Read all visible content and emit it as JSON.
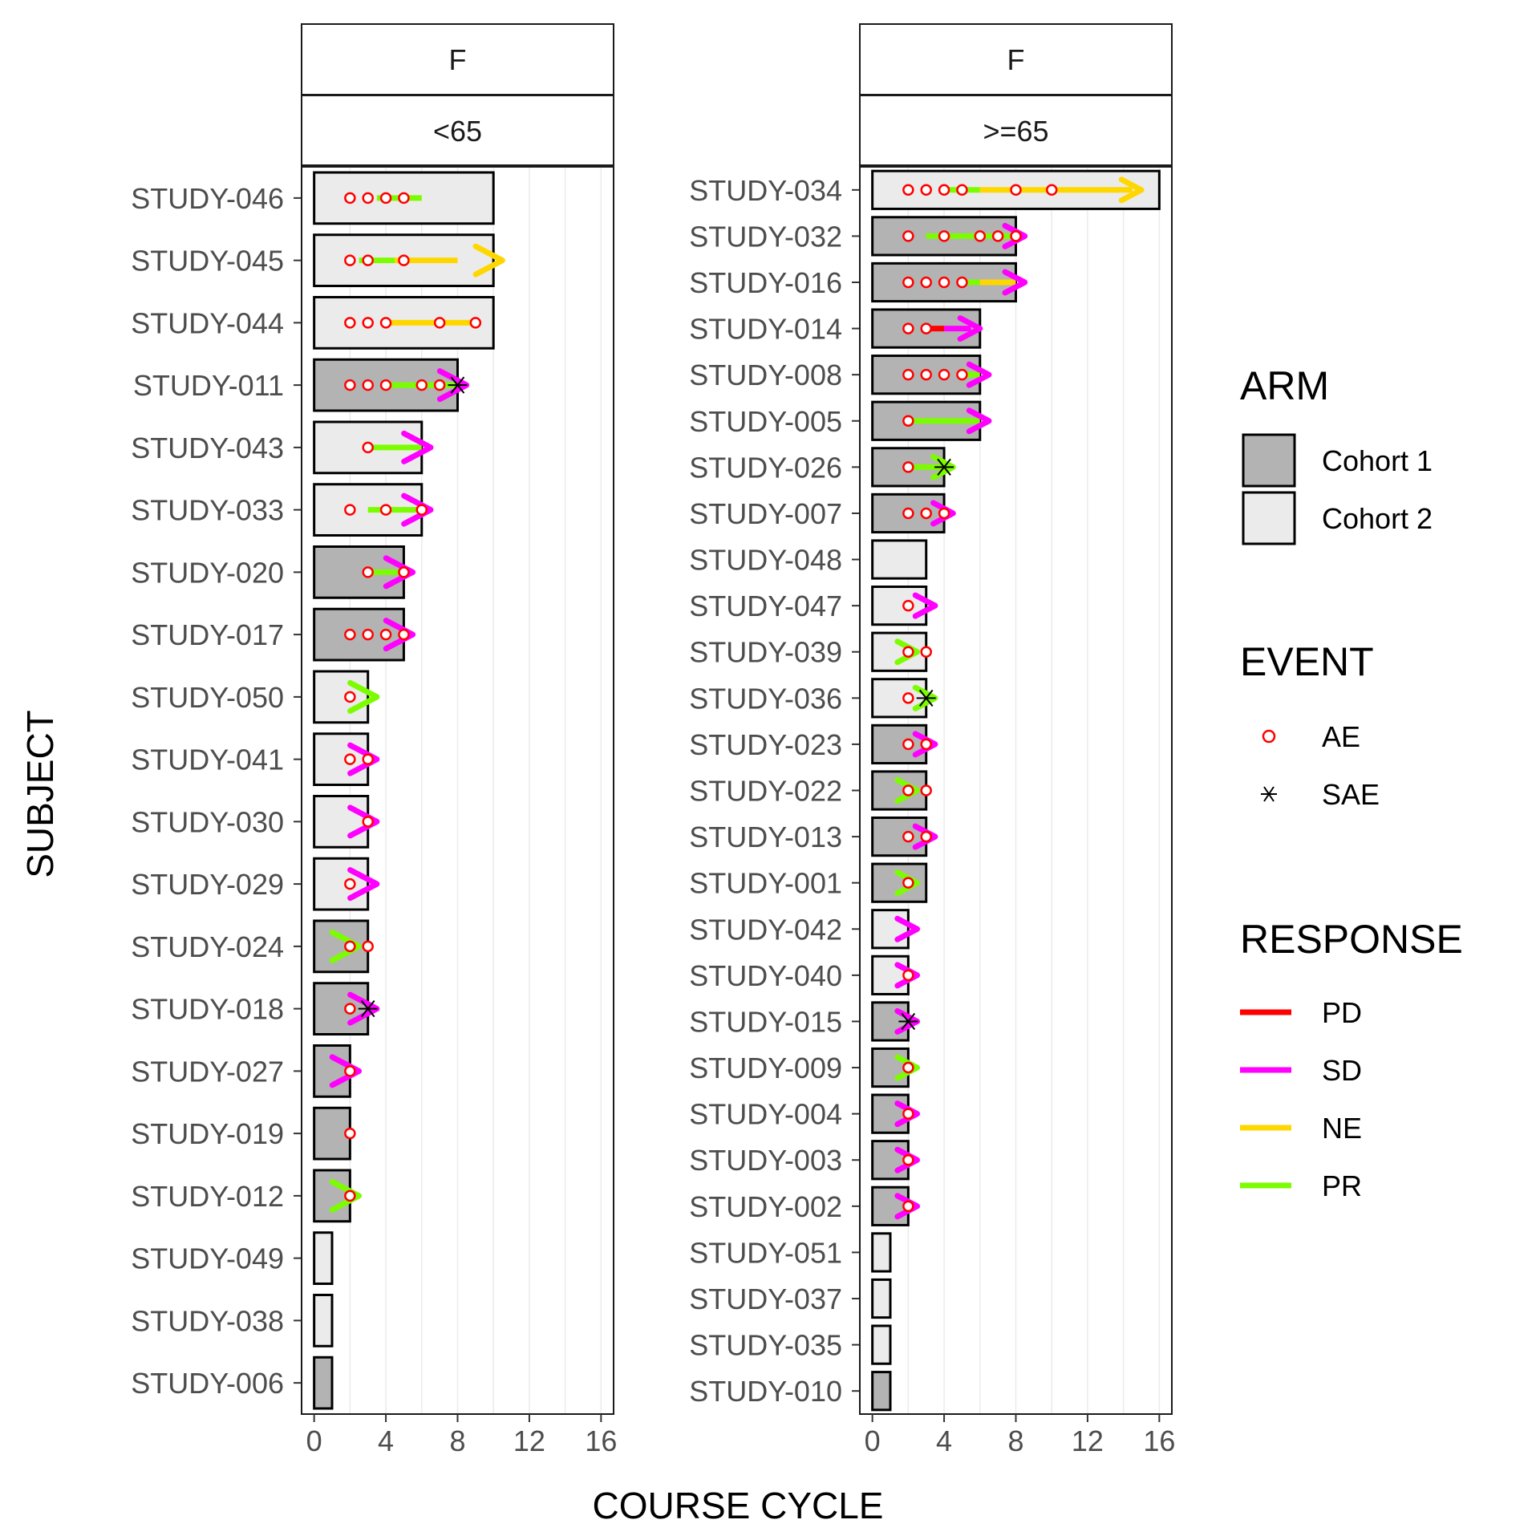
{
  "chart_data": {
    "type": "swimmer",
    "xlabel": "COURSE CYCLE",
    "ylabel": "SUBJECT",
    "x_ticks": [
      0,
      4,
      8,
      12,
      16
    ],
    "xlim": [
      -0.7,
      16.7
    ],
    "grid": true,
    "legend_position": "right",
    "colors": {
      "Cohort 1": "#b3b3b3",
      "Cohort 2": "#ebebeb",
      "PD": "#ff0000",
      "SD": "#ff00ff",
      "NE": "#ffd700",
      "PR": "#7cfc00",
      "AE": "#ff0000",
      "SAE": "#000000"
    },
    "legend": {
      "arm": {
        "title": "ARM",
        "items": [
          "Cohort 1",
          "Cohort 2"
        ]
      },
      "event": {
        "title": "EVENT",
        "items": [
          "AE",
          "SAE"
        ]
      },
      "response": {
        "title": "RESPONSE",
        "items": [
          "PD",
          "SD",
          "NE",
          "PR"
        ]
      }
    },
    "panels": [
      {
        "strip_top": "F",
        "strip_bottom": "<65",
        "subjects": [
          {
            "id": "STUDY-046",
            "arm": "Cohort 2",
            "end": 10,
            "ae": [
              2,
              3,
              4,
              5
            ],
            "sae": [],
            "response": [
              {
                "type": "PR",
                "start": 3.5,
                "end": 6
              }
            ],
            "arrow": null
          },
          {
            "id": "STUDY-045",
            "arm": "Cohort 2",
            "end": 10,
            "ae": [
              2,
              3,
              5
            ],
            "sae": [],
            "response": [
              {
                "type": "PR",
                "start": 2.5,
                "end": 4.5
              },
              {
                "type": "NE",
                "start": 4.5,
                "end": 8
              }
            ],
            "arrow": {
              "type": "NE",
              "at": 10.5
            }
          },
          {
            "id": "STUDY-044",
            "arm": "Cohort 2",
            "end": 10,
            "ae": [
              2,
              3,
              4,
              7,
              9
            ],
            "sae": [],
            "response": [
              {
                "type": "NE",
                "start": 4,
                "end": 9
              }
            ],
            "arrow": null
          },
          {
            "id": "STUDY-011",
            "arm": "Cohort 1",
            "end": 8,
            "ae": [
              2,
              3,
              4,
              6,
              7
            ],
            "sae": [
              8
            ],
            "response": [
              {
                "type": "PR",
                "start": 4,
                "end": 8
              }
            ],
            "arrow": {
              "type": "SD",
              "at": 8.5
            }
          },
          {
            "id": "STUDY-043",
            "arm": "Cohort 2",
            "end": 6,
            "ae": [
              3
            ],
            "sae": [],
            "response": [
              {
                "type": "PR",
                "start": 3,
                "end": 6
              }
            ],
            "arrow": {
              "type": "SD",
              "at": 6.5
            }
          },
          {
            "id": "STUDY-033",
            "arm": "Cohort 2",
            "end": 6,
            "ae": [
              2,
              4,
              6
            ],
            "sae": [],
            "response": [
              {
                "type": "PR",
                "start": 3,
                "end": 6
              }
            ],
            "arrow": {
              "type": "SD",
              "at": 6.5
            }
          },
          {
            "id": "STUDY-020",
            "arm": "Cohort 1",
            "end": 5,
            "ae": [
              3,
              5
            ],
            "sae": [],
            "response": [
              {
                "type": "PR",
                "start": 3,
                "end": 5
              }
            ],
            "arrow": {
              "type": "SD",
              "at": 5.5
            }
          },
          {
            "id": "STUDY-017",
            "arm": "Cohort 1",
            "end": 5,
            "ae": [
              2,
              3,
              4,
              5
            ],
            "sae": [],
            "response": [],
            "arrow": {
              "type": "SD",
              "at": 5.5
            }
          },
          {
            "id": "STUDY-050",
            "arm": "Cohort 2",
            "end": 3,
            "ae": [
              2
            ],
            "sae": [],
            "response": [],
            "arrow": {
              "type": "PR",
              "at": 3.5
            }
          },
          {
            "id": "STUDY-041",
            "arm": "Cohort 2",
            "end": 3,
            "ae": [
              2,
              3
            ],
            "sae": [],
            "response": [],
            "arrow": {
              "type": "SD",
              "at": 3.5
            }
          },
          {
            "id": "STUDY-030",
            "arm": "Cohort 2",
            "end": 3,
            "ae": [
              3
            ],
            "sae": [],
            "response": [],
            "arrow": {
              "type": "SD",
              "at": 3.5
            }
          },
          {
            "id": "STUDY-029",
            "arm": "Cohort 2",
            "end": 3,
            "ae": [
              2
            ],
            "sae": [],
            "response": [],
            "arrow": {
              "type": "SD",
              "at": 3.5
            }
          },
          {
            "id": "STUDY-024",
            "arm": "Cohort 1",
            "end": 3,
            "ae": [
              2,
              3
            ],
            "sae": [],
            "response": [],
            "arrow": {
              "type": "PR",
              "at": 2.5
            }
          },
          {
            "id": "STUDY-018",
            "arm": "Cohort 1",
            "end": 3,
            "ae": [
              2
            ],
            "sae": [
              3
            ],
            "response": [],
            "arrow": {
              "type": "SD",
              "at": 3.5
            }
          },
          {
            "id": "STUDY-027",
            "arm": "Cohort 1",
            "end": 2,
            "ae": [
              2
            ],
            "sae": [],
            "response": [],
            "arrow": {
              "type": "SD",
              "at": 2.5
            }
          },
          {
            "id": "STUDY-019",
            "arm": "Cohort 1",
            "end": 2,
            "ae": [
              2
            ],
            "sae": [],
            "response": [],
            "arrow": null
          },
          {
            "id": "STUDY-012",
            "arm": "Cohort 1",
            "end": 2,
            "ae": [
              2
            ],
            "sae": [],
            "response": [],
            "arrow": {
              "type": "PR",
              "at": 2.5
            }
          },
          {
            "id": "STUDY-049",
            "arm": "Cohort 2",
            "end": 1,
            "ae": [],
            "sae": [],
            "response": [],
            "arrow": null
          },
          {
            "id": "STUDY-038",
            "arm": "Cohort 2",
            "end": 1,
            "ae": [],
            "sae": [],
            "response": [],
            "arrow": null
          },
          {
            "id": "STUDY-006",
            "arm": "Cohort 1",
            "end": 1,
            "ae": [],
            "sae": [],
            "response": [],
            "arrow": null
          }
        ]
      },
      {
        "strip_top": "F",
        "strip_bottom": ">=65",
        "subjects": [
          {
            "id": "STUDY-034",
            "arm": "Cohort 2",
            "end": 16,
            "ae": [
              2,
              3,
              4,
              5,
              8,
              10
            ],
            "sae": [],
            "response": [
              {
                "type": "PR",
                "start": 4,
                "end": 6
              },
              {
                "type": "NE",
                "start": 6,
                "end": 14.5
              }
            ],
            "arrow": {
              "type": "NE",
              "at": 15
            }
          },
          {
            "id": "STUDY-032",
            "arm": "Cohort 1",
            "end": 8,
            "ae": [
              2,
              4,
              6,
              7,
              8
            ],
            "sae": [],
            "response": [
              {
                "type": "PR",
                "start": 3,
                "end": 8
              }
            ],
            "arrow": {
              "type": "SD",
              "at": 8.5
            }
          },
          {
            "id": "STUDY-016",
            "arm": "Cohort 1",
            "end": 8,
            "ae": [
              2,
              3,
              4,
              5
            ],
            "sae": [],
            "response": [
              {
                "type": "PR",
                "start": 5,
                "end": 6
              },
              {
                "type": "NE",
                "start": 6,
                "end": 8
              }
            ],
            "arrow": {
              "type": "SD",
              "at": 8.5
            }
          },
          {
            "id": "STUDY-014",
            "arm": "Cohort 1",
            "end": 6,
            "ae": [
              2,
              3
            ],
            "sae": [],
            "response": [
              {
                "type": "PD",
                "start": 3,
                "end": 4
              },
              {
                "type": "SD",
                "start": 4,
                "end": 5.5
              }
            ],
            "arrow": {
              "type": "SD",
              "at": 6
            }
          },
          {
            "id": "STUDY-008",
            "arm": "Cohort 1",
            "end": 6,
            "ae": [
              2,
              3,
              4,
              5
            ],
            "sae": [],
            "response": [
              {
                "type": "PR",
                "start": 5,
                "end": 6
              }
            ],
            "arrow": {
              "type": "SD",
              "at": 6.5
            }
          },
          {
            "id": "STUDY-005",
            "arm": "Cohort 1",
            "end": 6,
            "ae": [
              2
            ],
            "sae": [],
            "response": [
              {
                "type": "PR",
                "start": 2,
                "end": 6
              }
            ],
            "arrow": {
              "type": "SD",
              "at": 6.5
            }
          },
          {
            "id": "STUDY-026",
            "arm": "Cohort 1",
            "end": 4,
            "ae": [
              2
            ],
            "sae": [
              4
            ],
            "response": [
              {
                "type": "PR",
                "start": 2,
                "end": 4
              }
            ],
            "arrow": {
              "type": "PR",
              "at": 4.5
            }
          },
          {
            "id": "STUDY-007",
            "arm": "Cohort 1",
            "end": 4,
            "ae": [
              2,
              3,
              4
            ],
            "sae": [],
            "response": [],
            "arrow": {
              "type": "SD",
              "at": 4.5
            }
          },
          {
            "id": "STUDY-048",
            "arm": "Cohort 2",
            "end": 3,
            "ae": [],
            "sae": [],
            "response": [],
            "arrow": null
          },
          {
            "id": "STUDY-047",
            "arm": "Cohort 2",
            "end": 3,
            "ae": [
              2
            ],
            "sae": [],
            "response": [],
            "arrow": {
              "type": "SD",
              "at": 3.5
            }
          },
          {
            "id": "STUDY-039",
            "arm": "Cohort 2",
            "end": 3,
            "ae": [
              2,
              3
            ],
            "sae": [],
            "response": [],
            "arrow": {
              "type": "PR",
              "at": 2.5
            }
          },
          {
            "id": "STUDY-036",
            "arm": "Cohort 2",
            "end": 3,
            "ae": [
              2
            ],
            "sae": [
              3
            ],
            "response": [],
            "arrow": {
              "type": "PR",
              "at": 3.5
            }
          },
          {
            "id": "STUDY-023",
            "arm": "Cohort 1",
            "end": 3,
            "ae": [
              2,
              3
            ],
            "sae": [],
            "response": [],
            "arrow": {
              "type": "SD",
              "at": 3.5
            }
          },
          {
            "id": "STUDY-022",
            "arm": "Cohort 1",
            "end": 3,
            "ae": [
              2,
              3
            ],
            "sae": [],
            "response": [],
            "arrow": {
              "type": "PR",
              "at": 2.5
            }
          },
          {
            "id": "STUDY-013",
            "arm": "Cohort 1",
            "end": 3,
            "ae": [
              2,
              3
            ],
            "sae": [],
            "response": [],
            "arrow": {
              "type": "SD",
              "at": 3.5
            }
          },
          {
            "id": "STUDY-001",
            "arm": "Cohort 1",
            "end": 3,
            "ae": [
              2
            ],
            "sae": [],
            "response": [],
            "arrow": {
              "type": "PR",
              "at": 2.5
            }
          },
          {
            "id": "STUDY-042",
            "arm": "Cohort 2",
            "end": 2,
            "ae": [],
            "sae": [],
            "response": [],
            "arrow": {
              "type": "SD",
              "at": 2.5
            }
          },
          {
            "id": "STUDY-040",
            "arm": "Cohort 2",
            "end": 2,
            "ae": [
              2
            ],
            "sae": [],
            "response": [],
            "arrow": {
              "type": "SD",
              "at": 2.5
            }
          },
          {
            "id": "STUDY-015",
            "arm": "Cohort 1",
            "end": 2,
            "ae": [],
            "sae": [
              2
            ],
            "response": [],
            "arrow": {
              "type": "SD",
              "at": 2.5
            }
          },
          {
            "id": "STUDY-009",
            "arm": "Cohort 1",
            "end": 2,
            "ae": [
              2
            ],
            "sae": [],
            "response": [],
            "arrow": {
              "type": "PR",
              "at": 2.5
            }
          },
          {
            "id": "STUDY-004",
            "arm": "Cohort 1",
            "end": 2,
            "ae": [
              2
            ],
            "sae": [],
            "response": [],
            "arrow": {
              "type": "SD",
              "at": 2.5
            }
          },
          {
            "id": "STUDY-003",
            "arm": "Cohort 1",
            "end": 2,
            "ae": [
              2
            ],
            "sae": [],
            "response": [],
            "arrow": {
              "type": "SD",
              "at": 2.5
            }
          },
          {
            "id": "STUDY-002",
            "arm": "Cohort 1",
            "end": 2,
            "ae": [
              2
            ],
            "sae": [],
            "response": [],
            "arrow": {
              "type": "SD",
              "at": 2.5
            }
          },
          {
            "id": "STUDY-051",
            "arm": "Cohort 2",
            "end": 1,
            "ae": [],
            "sae": [],
            "response": [],
            "arrow": null
          },
          {
            "id": "STUDY-037",
            "arm": "Cohort 2",
            "end": 1,
            "ae": [],
            "sae": [],
            "response": [],
            "arrow": null
          },
          {
            "id": "STUDY-035",
            "arm": "Cohort 2",
            "end": 1,
            "ae": [],
            "sae": [],
            "response": [],
            "arrow": null
          },
          {
            "id": "STUDY-010",
            "arm": "Cohort 1",
            "end": 1,
            "ae": [],
            "sae": [],
            "response": [],
            "arrow": null
          }
        ]
      }
    ]
  }
}
